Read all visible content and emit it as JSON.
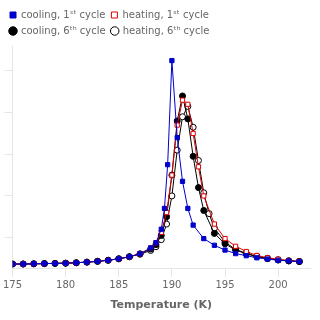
{
  "chart_data": {
    "type": "line",
    "x_label": "Temperature (K)",
    "xlim": [
      175,
      203
    ],
    "xticks": [
      175,
      180,
      185,
      190,
      195,
      200
    ],
    "ylim": [
      0.05,
      1.12
    ],
    "yticks": [
      0.2,
      0.4,
      0.6,
      0.8,
      1.0
    ],
    "tick_labels": "x",
    "grid": false,
    "legend": "upper left",
    "series": [
      {
        "name": "cooling, 1ˢᵗ cycle",
        "color": "#0000cc",
        "marker": "filled_square",
        "line_style": "solid",
        "x": [
          175,
          176,
          177,
          178,
          179,
          180,
          181,
          182,
          183,
          184,
          185,
          186,
          187,
          188,
          188.5,
          189,
          189.3,
          189.6,
          190.0,
          190.5,
          191.0,
          191.5,
          192,
          193,
          194,
          195,
          196,
          197,
          198,
          199,
          200,
          201,
          202
        ],
        "values": [
          0.073,
          0.073,
          0.074,
          0.075,
          0.076,
          0.077,
          0.079,
          0.082,
          0.086,
          0.091,
          0.098,
          0.108,
          0.122,
          0.15,
          0.175,
          0.24,
          0.34,
          0.55,
          1.05,
          0.68,
          0.47,
          0.34,
          0.26,
          0.195,
          0.163,
          0.14,
          0.123,
          0.113,
          0.103,
          0.097,
          0.091,
          0.088,
          0.085
        ]
      },
      {
        "name": "heating, 1ˢᵗ cycle",
        "color": "#dd0000",
        "marker": "open_square",
        "line_style": "solid",
        "x": [
          175,
          176,
          177,
          178,
          179,
          180,
          181,
          182,
          183,
          184,
          185,
          186,
          187,
          188,
          188.5,
          189,
          189.5,
          190.0,
          190.5,
          191.0,
          191.5,
          192.0,
          192.5,
          193,
          194,
          195,
          196,
          197,
          198,
          199,
          200,
          201,
          202
        ],
        "values": [
          0.073,
          0.073,
          0.074,
          0.075,
          0.076,
          0.077,
          0.079,
          0.082,
          0.086,
          0.091,
          0.098,
          0.108,
          0.122,
          0.15,
          0.175,
          0.225,
          0.32,
          0.5,
          0.74,
          0.86,
          0.84,
          0.7,
          0.54,
          0.4,
          0.265,
          0.195,
          0.158,
          0.133,
          0.114,
          0.103,
          0.096,
          0.09,
          0.086
        ]
      },
      {
        "name": "cooling, 6ᵗʰ cycle",
        "color": "#000000",
        "marker": "filled_circle",
        "line_style": "solid",
        "x": [
          175,
          176,
          177,
          178,
          179,
          180,
          181,
          182,
          183,
          184,
          185,
          186,
          187,
          188,
          188.5,
          189,
          189.5,
          190.0,
          190.5,
          191.0,
          191.5,
          192.0,
          192.5,
          193,
          194,
          195,
          196,
          197,
          198,
          199,
          200,
          201,
          202
        ],
        "values": [
          0.073,
          0.073,
          0.074,
          0.075,
          0.076,
          0.077,
          0.079,
          0.082,
          0.086,
          0.091,
          0.098,
          0.108,
          0.122,
          0.145,
          0.166,
          0.21,
          0.3,
          0.5,
          0.76,
          0.88,
          0.77,
          0.59,
          0.44,
          0.33,
          0.22,
          0.17,
          0.14,
          0.122,
          0.108,
          0.099,
          0.092,
          0.088,
          0.085
        ]
      },
      {
        "name": "heating, 6ᵗʰ cycle",
        "color": "#000000",
        "marker": "open_circle",
        "line_style": "solid",
        "x": [
          175,
          176,
          177,
          178,
          179,
          180,
          181,
          182,
          183,
          184,
          185,
          186,
          187,
          188,
          188.5,
          189,
          189.5,
          190.0,
          190.5,
          191.0,
          191.5,
          192.0,
          192.5,
          193,
          193.5,
          194,
          195,
          196,
          197,
          198,
          199,
          200,
          201,
          202
        ],
        "values": [
          0.073,
          0.073,
          0.074,
          0.075,
          0.076,
          0.077,
          0.079,
          0.082,
          0.086,
          0.091,
          0.098,
          0.108,
          0.12,
          0.138,
          0.156,
          0.19,
          0.265,
          0.4,
          0.62,
          0.78,
          0.83,
          0.73,
          0.57,
          0.415,
          0.315,
          0.245,
          0.178,
          0.143,
          0.124,
          0.11,
          0.1,
          0.093,
          0.088,
          0.085
        ]
      }
    ]
  }
}
